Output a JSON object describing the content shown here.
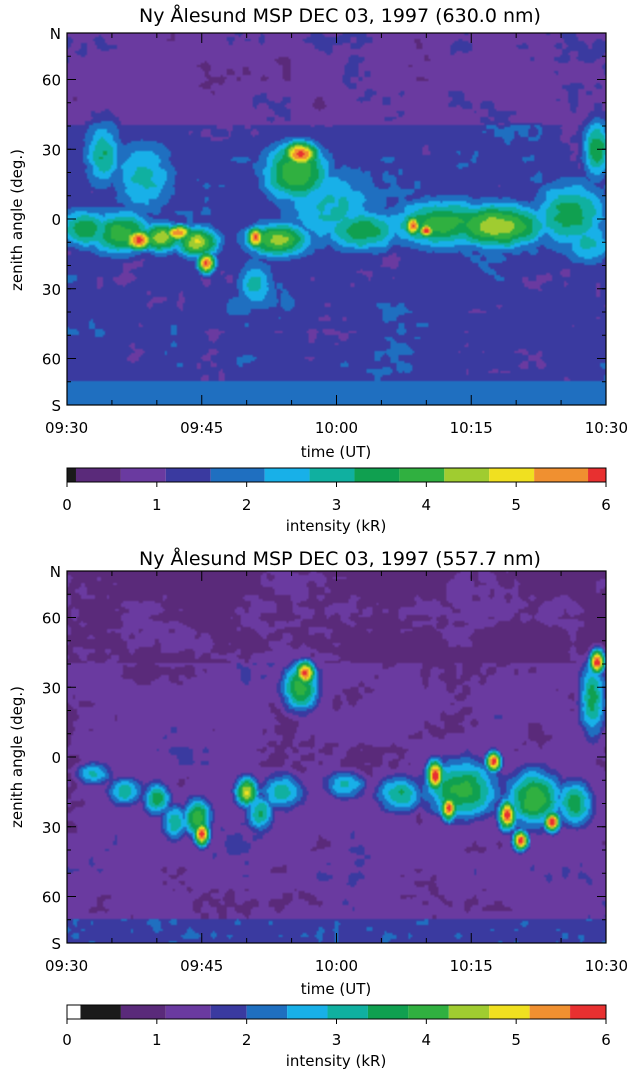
{
  "panels": [
    {
      "title": "Ny Ålesund MSP DEC 03, 1997 (630.0 nm)",
      "xlabel": "time (UT)",
      "ylabel": "zenith angle (deg.)",
      "x_ticks": [
        "09:30",
        "09:45",
        "10:00",
        "10:15",
        "10:30"
      ],
      "y_ticks": [
        {
          "label": "N",
          "zenith": 80
        },
        {
          "label": "60",
          "zenith": 60
        },
        {
          "label": "30",
          "zenith": 30
        },
        {
          "label": "0",
          "zenith": 0
        },
        {
          "label": "30",
          "zenith": -30
        },
        {
          "label": "60",
          "zenith": -60
        },
        {
          "label": "S",
          "zenith": -80
        }
      ],
      "colorbar": {
        "label": "intensity (kR)",
        "ticks": [
          "0",
          "1",
          "2",
          "3",
          "4",
          "5",
          "6"
        ],
        "range": [
          0,
          6
        ],
        "levels": [
          {
            "from": 0.0,
            "to": 0.1,
            "color": "#1a1a1a"
          },
          {
            "from": 0.1,
            "to": 0.6,
            "color": "#5a2a7a"
          },
          {
            "from": 0.6,
            "to": 1.1,
            "color": "#6a3aa0"
          },
          {
            "from": 1.1,
            "to": 1.6,
            "color": "#3a3aa0"
          },
          {
            "from": 1.6,
            "to": 2.2,
            "color": "#1f6fc0"
          },
          {
            "from": 2.2,
            "to": 2.7,
            "color": "#18b0e8"
          },
          {
            "from": 2.7,
            "to": 3.2,
            "color": "#10b0a0"
          },
          {
            "from": 3.2,
            "to": 3.7,
            "color": "#10a050"
          },
          {
            "from": 3.7,
            "to": 4.2,
            "color": "#30b040"
          },
          {
            "from": 4.2,
            "to": 4.7,
            "color": "#a0cc30"
          },
          {
            "from": 4.7,
            "to": 5.2,
            "color": "#f0e020"
          },
          {
            "from": 5.2,
            "to": 5.8,
            "color": "#f09030"
          },
          {
            "from": 5.8,
            "to": 6.0,
            "color": "#e83030"
          }
        ]
      }
    },
    {
      "title": "Ny Ålesund MSP DEC 03, 1997 (557.7 nm)",
      "xlabel": "time (UT)",
      "ylabel": "zenith angle (deg.)",
      "x_ticks": [
        "09:30",
        "09:45",
        "10:00",
        "10:15",
        "10:30"
      ],
      "y_ticks": [
        {
          "label": "N",
          "zenith": 80
        },
        {
          "label": "60",
          "zenith": 60
        },
        {
          "label": "30",
          "zenith": 30
        },
        {
          "label": "0",
          "zenith": 0
        },
        {
          "label": "30",
          "zenith": -30
        },
        {
          "label": "60",
          "zenith": -60
        },
        {
          "label": "S",
          "zenith": -80
        }
      ],
      "colorbar": {
        "label": "intensity (kR)",
        "ticks": [
          "0",
          "1",
          "2",
          "3",
          "4",
          "5",
          "6"
        ],
        "range": [
          0,
          6
        ],
        "levels": [
          {
            "from": 0.0,
            "to": 0.15,
            "color": "#ffffff"
          },
          {
            "from": 0.15,
            "to": 0.6,
            "color": "#1a1a1a"
          },
          {
            "from": 0.6,
            "to": 1.1,
            "color": "#5a2a7a"
          },
          {
            "from": 1.1,
            "to": 1.6,
            "color": "#6a3aa0"
          },
          {
            "from": 1.6,
            "to": 2.0,
            "color": "#3a3aa0"
          },
          {
            "from": 2.0,
            "to": 2.45,
            "color": "#1f6fc0"
          },
          {
            "from": 2.45,
            "to": 2.9,
            "color": "#18b0e8"
          },
          {
            "from": 2.9,
            "to": 3.35,
            "color": "#10b0a0"
          },
          {
            "from": 3.35,
            "to": 3.8,
            "color": "#10a050"
          },
          {
            "from": 3.8,
            "to": 4.25,
            "color": "#30b040"
          },
          {
            "from": 4.25,
            "to": 4.7,
            "color": "#a0cc30"
          },
          {
            "from": 4.7,
            "to": 5.15,
            "color": "#f0e020"
          },
          {
            "from": 5.15,
            "to": 5.6,
            "color": "#f09030"
          },
          {
            "from": 5.6,
            "to": 6.0,
            "color": "#e83030"
          }
        ]
      }
    }
  ],
  "chart_data": [
    {
      "type": "heatmap",
      "title": "Ny Ålesund MSP DEC 03, 1997 (630.0 nm)",
      "xlabel": "time (UT)",
      "ylabel": "zenith angle (deg.)",
      "xlim": [
        "09:30",
        "10:30"
      ],
      "ylim": [
        -80,
        80
      ],
      "colorbar_label": "intensity (kR)",
      "colorbar_range": [
        0,
        6
      ],
      "background": {
        "value": 1.35,
        "top_value": 0.9
      },
      "features": [
        {
          "t": 6.0,
          "z": -6,
          "value": 4.0,
          "dt": 3.5,
          "dz": 9
        },
        {
          "t": 8.0,
          "z": -9,
          "value": 5.9,
          "dt": 1.5,
          "dz": 4
        },
        {
          "t": 10.5,
          "z": -8,
          "value": 4.6,
          "dt": 2.0,
          "dz": 6
        },
        {
          "t": 12.5,
          "z": -6,
          "value": 5.9,
          "dt": 1.3,
          "dz": 3
        },
        {
          "t": 14.5,
          "z": -10,
          "value": 4.8,
          "dt": 2.2,
          "dz": 6
        },
        {
          "t": 15.5,
          "z": -19,
          "value": 5.9,
          "dt": 0.9,
          "dz": 4
        },
        {
          "t": 4.0,
          "z": 28,
          "value": 3.2,
          "dt": 2.0,
          "dz": 14
        },
        {
          "t": 8.5,
          "z": 18,
          "value": 2.9,
          "dt": 3.5,
          "dz": 16
        },
        {
          "t": 2.0,
          "z": -4,
          "value": 3.6,
          "dt": 3.0,
          "dz": 8
        },
        {
          "t": 21.0,
          "z": -8,
          "value": 5.9,
          "dt": 0.9,
          "dz": 4
        },
        {
          "t": 23.5,
          "z": -9,
          "value": 4.4,
          "dt": 3.5,
          "dz": 7
        },
        {
          "t": 21.0,
          "z": -28,
          "value": 3.0,
          "dt": 2.0,
          "dz": 10
        },
        {
          "t": 26.0,
          "z": 28,
          "value": 5.9,
          "dt": 1.8,
          "dz": 5
        },
        {
          "t": 25.5,
          "z": 20,
          "value": 4.2,
          "dt": 3.5,
          "dz": 12
        },
        {
          "t": 29.5,
          "z": 5,
          "value": 2.8,
          "dt": 6.0,
          "dz": 18
        },
        {
          "t": 33.0,
          "z": -5,
          "value": 3.6,
          "dt": 4.0,
          "dz": 9
        },
        {
          "t": 38.5,
          "z": -3,
          "value": 5.9,
          "dt": 0.8,
          "dz": 4
        },
        {
          "t": 40.0,
          "z": -5,
          "value": 5.9,
          "dt": 0.8,
          "dz": 3
        },
        {
          "t": 42.0,
          "z": -2,
          "value": 3.9,
          "dt": 6.0,
          "dz": 10
        },
        {
          "t": 48.0,
          "z": -3,
          "value": 4.6,
          "dt": 5.0,
          "dz": 9
        },
        {
          "t": 56.0,
          "z": 2,
          "value": 3.5,
          "dt": 4.0,
          "dz": 14
        },
        {
          "t": 59.0,
          "z": 30,
          "value": 3.6,
          "dt": 1.5,
          "dz": 12
        },
        {
          "t": 58.0,
          "z": -10,
          "value": 2.8,
          "dt": 3.0,
          "dz": 10
        }
      ]
    },
    {
      "type": "heatmap",
      "title": "Ny Ålesund MSP DEC 03, 1997 (557.7 nm)",
      "xlabel": "time (UT)",
      "ylabel": "zenith angle (deg.)",
      "xlim": [
        "09:30",
        "10:30"
      ],
      "ylim": [
        -80,
        80
      ],
      "colorbar_label": "intensity (kR)",
      "colorbar_range": [
        0,
        6
      ],
      "background": {
        "value": 1.3,
        "top_value": 1.0
      },
      "features": [
        {
          "t": 3.0,
          "z": -7,
          "value": 3.0,
          "dt": 2.0,
          "dz": 5
        },
        {
          "t": 6.5,
          "z": -15,
          "value": 3.2,
          "dt": 2.0,
          "dz": 6
        },
        {
          "t": 10.0,
          "z": -18,
          "value": 3.6,
          "dt": 1.5,
          "dz": 7
        },
        {
          "t": 12.0,
          "z": -28,
          "value": 3.3,
          "dt": 1.5,
          "dz": 8
        },
        {
          "t": 15.0,
          "z": -33,
          "value": 5.9,
          "dt": 0.8,
          "dz": 5
        },
        {
          "t": 14.5,
          "z": -26,
          "value": 4.2,
          "dt": 1.5,
          "dz": 8
        },
        {
          "t": 20.0,
          "z": -15,
          "value": 4.8,
          "dt": 1.2,
          "dz": 6
        },
        {
          "t": 21.5,
          "z": -24,
          "value": 3.5,
          "dt": 1.5,
          "dz": 8
        },
        {
          "t": 26.5,
          "z": 36,
          "value": 5.9,
          "dt": 1.0,
          "dz": 5
        },
        {
          "t": 26.0,
          "z": 30,
          "value": 4.0,
          "dt": 2.0,
          "dz": 10
        },
        {
          "t": 24.0,
          "z": -15,
          "value": 3.2,
          "dt": 2.5,
          "dz": 8
        },
        {
          "t": 31.0,
          "z": -12,
          "value": 3.0,
          "dt": 2.5,
          "dz": 6
        },
        {
          "t": 37.0,
          "z": -16,
          "value": 3.4,
          "dt": 2.5,
          "dz": 8
        },
        {
          "t": 41.0,
          "z": -8,
          "value": 5.9,
          "dt": 0.9,
          "dz": 6
        },
        {
          "t": 42.5,
          "z": -22,
          "value": 5.9,
          "dt": 0.8,
          "dz": 5
        },
        {
          "t": 44.0,
          "z": -14,
          "value": 4.0,
          "dt": 4.0,
          "dz": 12
        },
        {
          "t": 47.5,
          "z": -2,
          "value": 5.9,
          "dt": 0.8,
          "dz": 4
        },
        {
          "t": 49.0,
          "z": -25,
          "value": 5.9,
          "dt": 0.9,
          "dz": 6
        },
        {
          "t": 50.5,
          "z": -36,
          "value": 5.9,
          "dt": 0.8,
          "dz": 4
        },
        {
          "t": 52.0,
          "z": -18,
          "value": 4.2,
          "dt": 3.0,
          "dz": 12
        },
        {
          "t": 54.0,
          "z": -28,
          "value": 5.9,
          "dt": 0.8,
          "dz": 4
        },
        {
          "t": 56.5,
          "z": -20,
          "value": 3.6,
          "dt": 2.0,
          "dz": 10
        },
        {
          "t": 59.0,
          "z": 41,
          "value": 5.9,
          "dt": 0.8,
          "dz": 5
        },
        {
          "t": 58.5,
          "z": 25,
          "value": 3.5,
          "dt": 1.5,
          "dz": 16
        }
      ]
    }
  ]
}
